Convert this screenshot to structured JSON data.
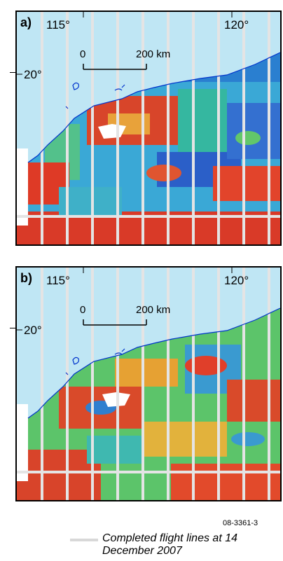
{
  "panels": [
    {
      "label": "a)",
      "lon_left": "115°",
      "lon_right": "120°",
      "lat": "20°",
      "scale_start": "0",
      "scale_end": "200 km",
      "theme": "mostly-blue-green"
    },
    {
      "label": "b)",
      "lon_left": "115°",
      "lon_right": "120°",
      "lat": "20°",
      "scale_start": "0",
      "scale_end": "200 km",
      "theme": "mostly-green-red"
    }
  ],
  "figure_id": "08-3361-3",
  "legend": {
    "text": "Completed flight lines at 14 December 2007",
    "swatch_color": "#d8d8d8"
  },
  "colors": {
    "ocean": "#bfe6f4",
    "flight_lines": "#e4e4e4",
    "unsurveyed": "#ffffff",
    "coast": "#0033cc"
  }
}
